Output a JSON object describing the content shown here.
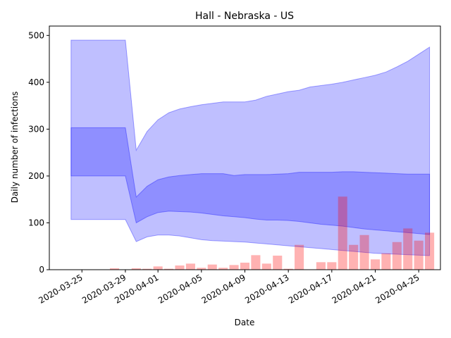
{
  "chart_data": {
    "type": "area",
    "title": "Hall - Nebraska - US",
    "xlabel": "Date",
    "ylabel": "Daily number of infections",
    "start_date": "2020-03-24",
    "xlim": [
      "2020-03-22",
      "2020-04-27"
    ],
    "ylim": [
      0,
      520
    ],
    "x_ticks": [
      "2020-03-25",
      "2020-03-29",
      "2020-04-01",
      "2020-04-05",
      "2020-04-09",
      "2020-04-13",
      "2020-04-17",
      "2020-04-21",
      "2020-04-25"
    ],
    "y_ticks": [
      0,
      100,
      200,
      300,
      400,
      500
    ],
    "grid": false,
    "colors": {
      "band": "#0000ff",
      "bars": "#ff0000"
    },
    "bands": {
      "dates": [
        "2020-03-24",
        "2020-03-29",
        "2020-03-30",
        "2020-03-31",
        "2020-04-01",
        "2020-04-02",
        "2020-04-03",
        "2020-04-04",
        "2020-04-05",
        "2020-04-06",
        "2020-04-07",
        "2020-04-08",
        "2020-04-09",
        "2020-04-10",
        "2020-04-11",
        "2020-04-12",
        "2020-04-13",
        "2020-04-14",
        "2020-04-15",
        "2020-04-16",
        "2020-04-17",
        "2020-04-18",
        "2020-04-19",
        "2020-04-20",
        "2020-04-21",
        "2020-04-22",
        "2020-04-23",
        "2020-04-24",
        "2020-04-25",
        "2020-04-26"
      ],
      "outer_upper": [
        490,
        490,
        255,
        295,
        320,
        335,
        343,
        348,
        352,
        355,
        358,
        358,
        358,
        362,
        370,
        375,
        380,
        383,
        390,
        393,
        396,
        400,
        405,
        410,
        415,
        422,
        433,
        445,
        460,
        475
      ],
      "outer_lower": [
        107,
        107,
        60,
        70,
        74,
        74,
        72,
        68,
        64,
        62,
        61,
        60,
        59,
        57,
        55,
        53,
        51,
        49,
        47,
        45,
        43,
        41,
        39,
        37,
        35,
        34,
        33,
        32,
        31,
        30
      ],
      "inner_upper": [
        303,
        303,
        155,
        178,
        192,
        198,
        201,
        203,
        205,
        205,
        205,
        201,
        203,
        203,
        203,
        204,
        205,
        208,
        208,
        208,
        208,
        209,
        209,
        208,
        207,
        206,
        205,
        204,
        204,
        204
      ],
      "inner_lower": [
        200,
        200,
        100,
        113,
        122,
        125,
        124,
        123,
        121,
        118,
        115,
        113,
        111,
        108,
        106,
        106,
        105,
        103,
        100,
        97,
        95,
        93,
        90,
        87,
        85,
        83,
        81,
        79,
        77,
        75
      ]
    },
    "bars": {
      "dates": [
        "2020-03-28",
        "2020-03-30",
        "2020-03-31",
        "2020-04-01",
        "2020-04-02",
        "2020-04-03",
        "2020-04-04",
        "2020-04-05",
        "2020-04-06",
        "2020-04-07",
        "2020-04-08",
        "2020-04-09",
        "2020-04-10",
        "2020-04-11",
        "2020-04-12",
        "2020-04-13",
        "2020-04-14",
        "2020-04-15",
        "2020-04-16",
        "2020-04-17",
        "2020-04-18",
        "2020-04-19",
        "2020-04-20",
        "2020-04-21",
        "2020-04-22",
        "2020-04-23",
        "2020-04-24",
        "2020-04-25",
        "2020-04-26"
      ],
      "values": [
        3,
        3,
        2,
        7,
        2,
        9,
        13,
        4,
        11,
        4,
        10,
        15,
        31,
        13,
        30,
        2,
        53,
        0,
        16,
        16,
        156,
        53,
        74,
        22,
        35,
        59,
        88,
        62,
        79
      ]
    }
  }
}
